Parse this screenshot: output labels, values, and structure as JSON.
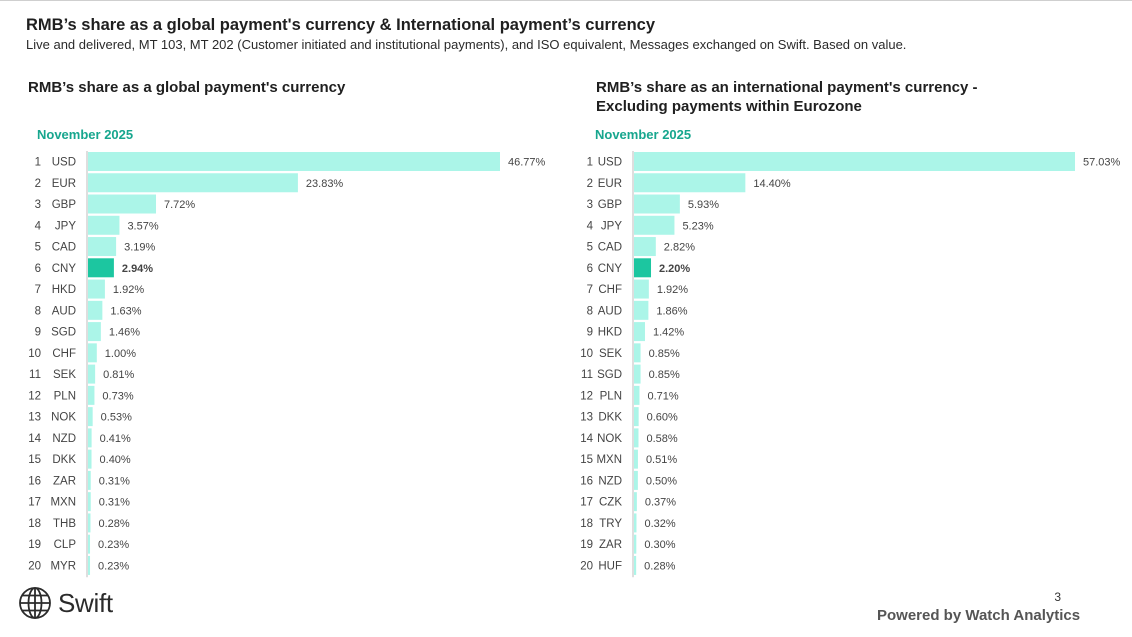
{
  "header": {
    "title": "RMB’s share as a global payment's currency & International payment’s currency",
    "subtitle": "Live and delivered, MT 103, MT 202 (Customer initiated and institutional payments), and ISO equivalent, Messages exchanged on Swift. Based on value."
  },
  "footer": {
    "logo_text": "Swift",
    "page_number": "3",
    "powered_by": "Powered by Watch Analytics"
  },
  "colors": {
    "bar": "#abf5e8",
    "highlight": "#1cc6a0",
    "accent_text": "#17a68e"
  },
  "chart_data": [
    {
      "type": "bar",
      "orientation": "horizontal",
      "title_lines": [
        "RMB’s share as a global payment's currency"
      ],
      "period": "November 2025",
      "highlight": "CNY",
      "ranks": [
        "1",
        "2",
        "3",
        "4",
        "5",
        "6",
        "7",
        "8",
        "9",
        "10",
        "11",
        "12",
        "13",
        "14",
        "15",
        "16",
        "17",
        "18",
        "19",
        "20"
      ],
      "categories": [
        "USD",
        "EUR",
        "GBP",
        "JPY",
        "CAD",
        "CNY",
        "HKD",
        "AUD",
        "SGD",
        "CHF",
        "SEK",
        "PLN",
        "NOK",
        "NZD",
        "DKK",
        "ZAR",
        "MXN",
        "THB",
        "CLP",
        "MYR"
      ],
      "values": [
        46.77,
        23.83,
        7.72,
        3.57,
        3.19,
        2.94,
        1.92,
        1.63,
        1.46,
        1.0,
        0.81,
        0.73,
        0.53,
        0.41,
        0.4,
        0.31,
        0.31,
        0.28,
        0.23,
        0.23
      ],
      "labels": [
        "46.77%",
        "23.83%",
        "7.72%",
        "3.57%",
        "3.19%",
        "2.94%",
        "1.92%",
        "1.63%",
        "1.46%",
        "1.00%",
        "0.81%",
        "0.73%",
        "0.53%",
        "0.41%",
        "0.40%",
        "0.31%",
        "0.31%",
        "0.28%",
        "0.23%",
        "0.23%"
      ]
    },
    {
      "type": "bar",
      "orientation": "horizontal",
      "title_lines": [
        "RMB’s share as an international payment's currency -",
        "Excluding payments within Eurozone"
      ],
      "period": "November 2025",
      "highlight": "CNY",
      "ranks": [
        "1",
        "2",
        "3",
        "4",
        "5",
        "6",
        "7",
        "8",
        "9",
        "10",
        "11",
        "12",
        "13",
        "14",
        "15",
        "16",
        "17",
        "18",
        "19",
        "20"
      ],
      "categories": [
        "USD",
        "EUR",
        "GBP",
        "JPY",
        "CAD",
        "CNY",
        "CHF",
        "AUD",
        "HKD",
        "SEK",
        "SGD",
        "PLN",
        "DKK",
        "NOK",
        "MXN",
        "NZD",
        "CZK",
        "TRY",
        "ZAR",
        "HUF"
      ],
      "values": [
        57.03,
        14.4,
        5.93,
        5.23,
        2.82,
        2.2,
        1.92,
        1.86,
        1.42,
        0.85,
        0.85,
        0.71,
        0.6,
        0.58,
        0.51,
        0.5,
        0.37,
        0.32,
        0.3,
        0.28
      ],
      "labels": [
        "57.03%",
        "14.40%",
        "5.93%",
        "5.23%",
        "2.82%",
        "2.20%",
        "1.92%",
        "1.86%",
        "1.42%",
        "0.85%",
        "0.85%",
        "0.71%",
        "0.60%",
        "0.58%",
        "0.51%",
        "0.50%",
        "0.37%",
        "0.32%",
        "0.30%",
        "0.28%"
      ]
    }
  ]
}
